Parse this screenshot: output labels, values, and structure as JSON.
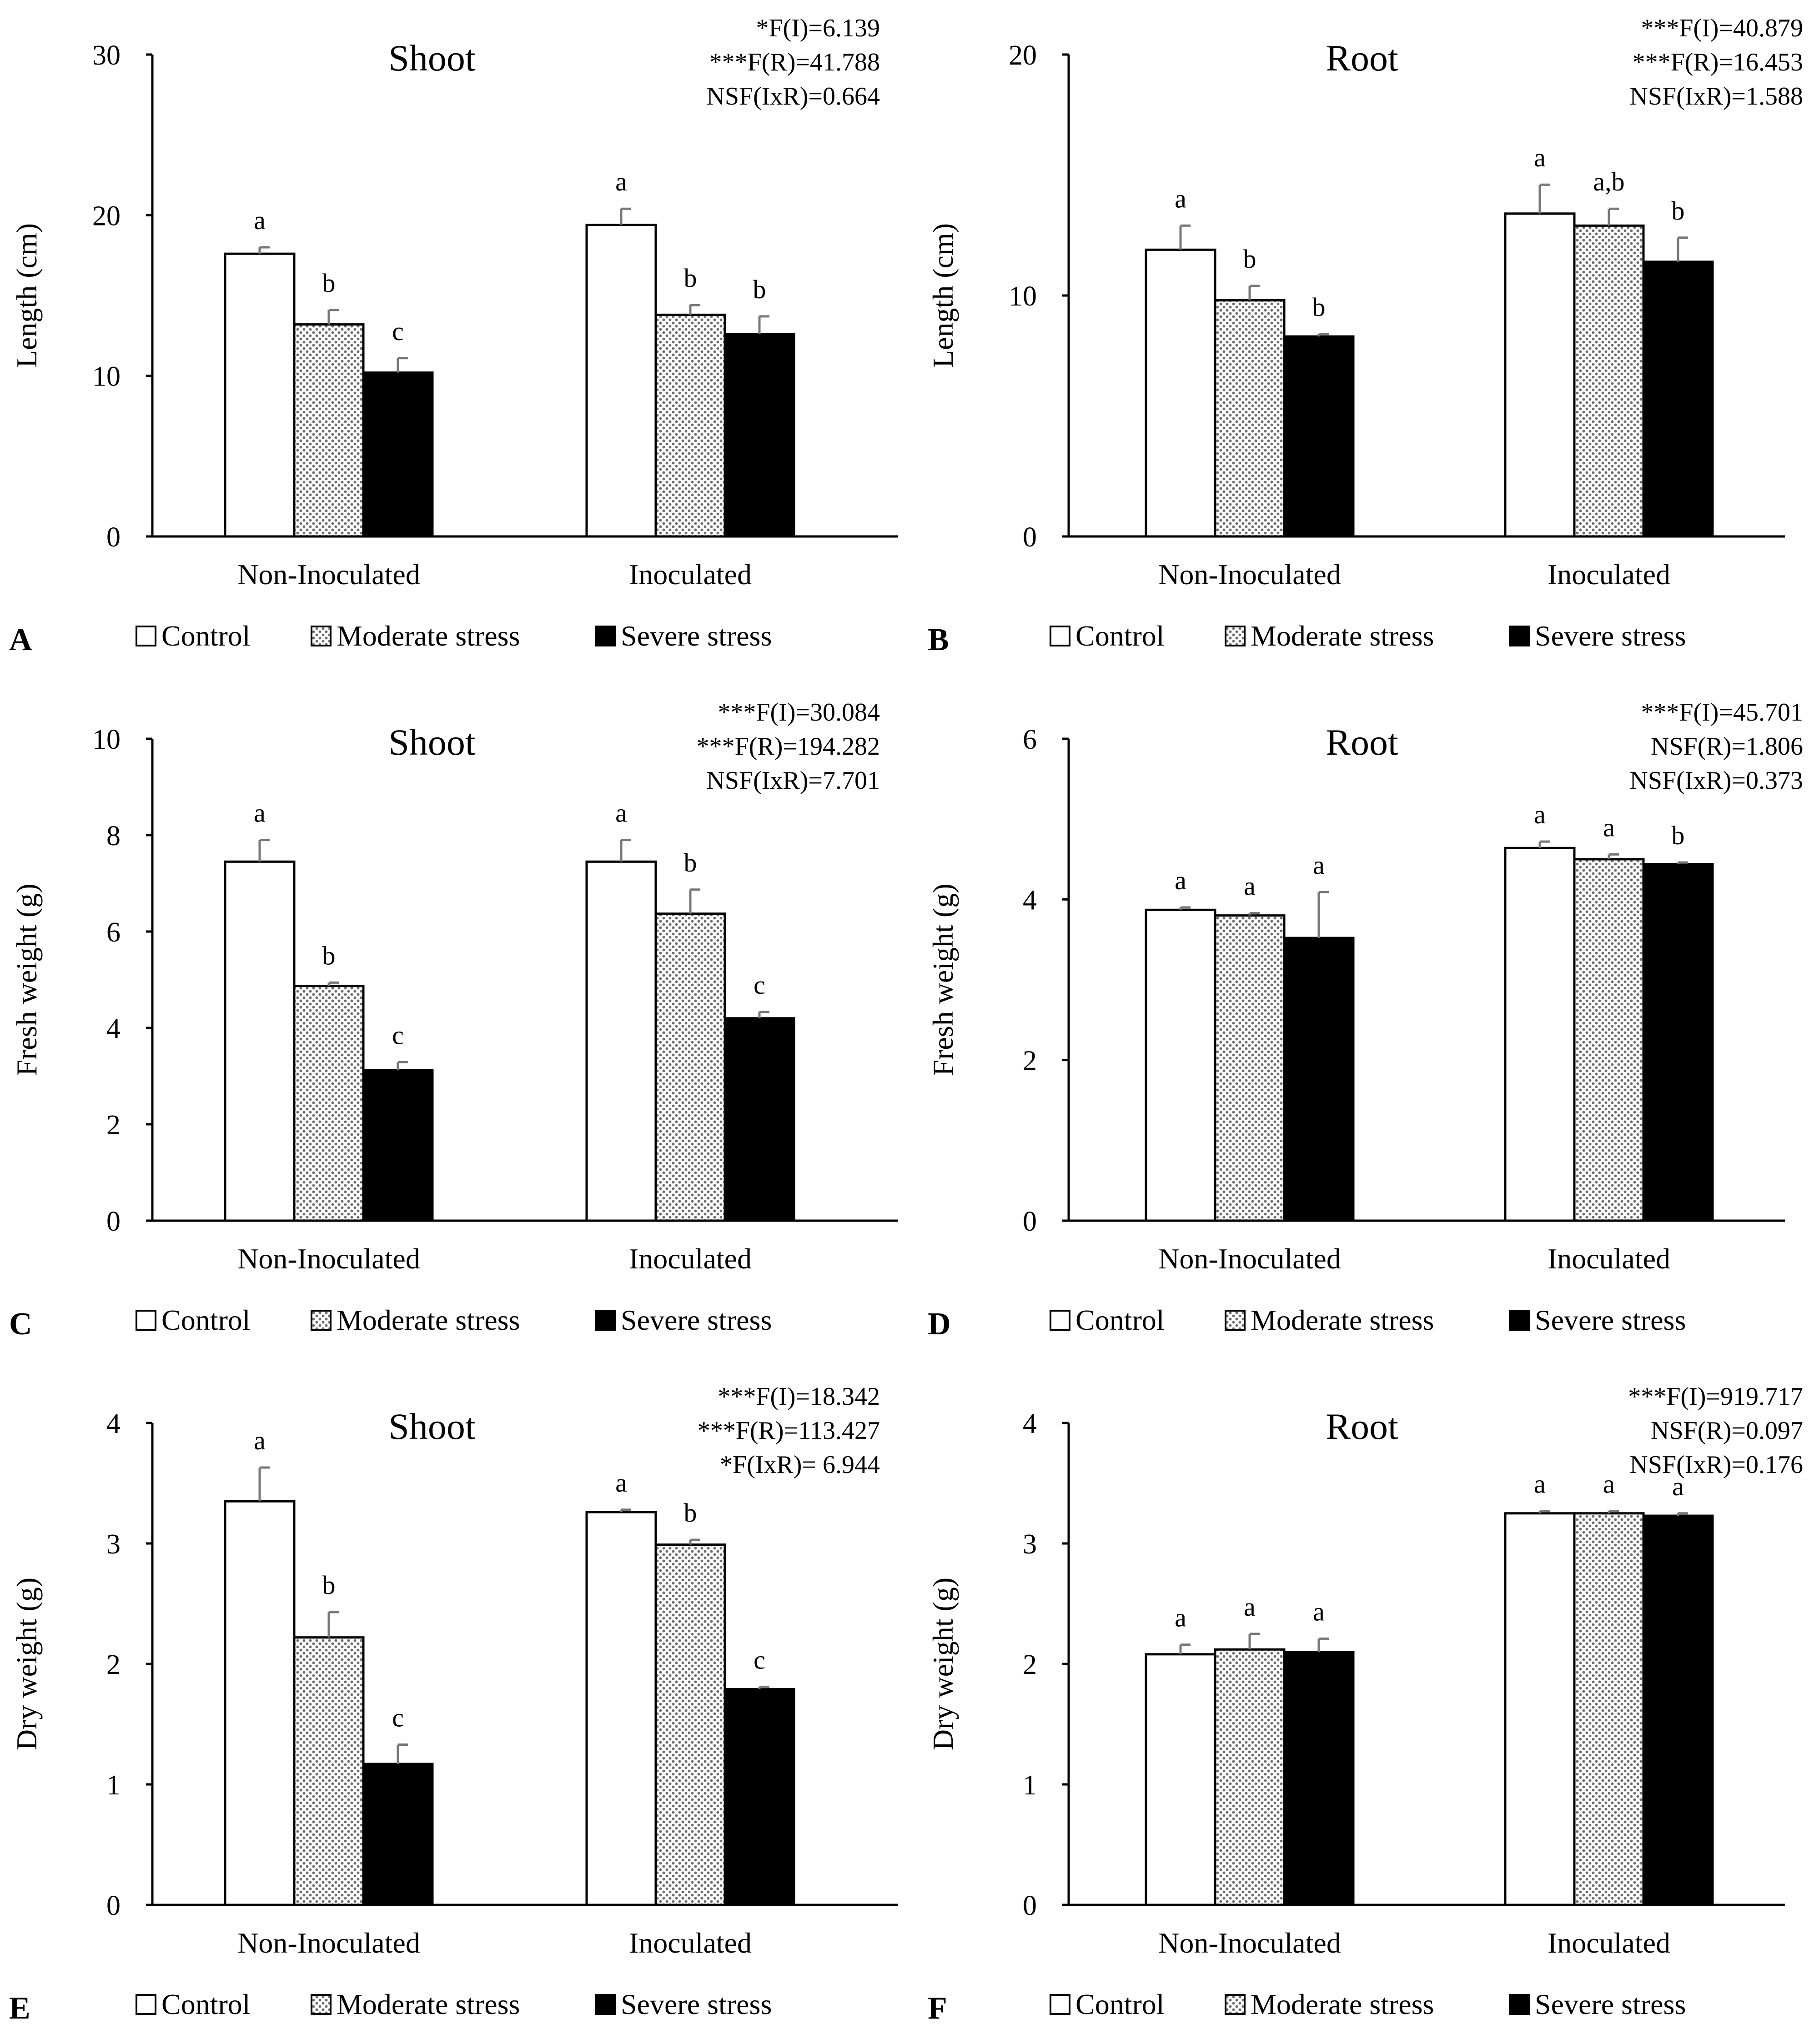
{
  "colors": {
    "control": "#ffffff",
    "moderate": "dotted-gray",
    "severe": "#000000",
    "axis": "#000000"
  },
  "legend": {
    "control": "Control",
    "moderate": "Moderate stress",
    "severe": "Severe stress"
  },
  "chart_data": [
    {
      "panel": "A",
      "type": "bar",
      "title": "Shoot",
      "ylabel": "Length (cm)",
      "ylim": [
        0,
        30
      ],
      "yticks": [
        "0",
        "10",
        "20",
        "30"
      ],
      "categories": [
        "Non-Inoculated",
        "Inoculated"
      ],
      "stats": [
        "*F(I)=6.139",
        "***F(R)=41.788",
        "NSF(IxR)=0.664"
      ],
      "series": [
        {
          "name": "Control",
          "values": [
            17.6,
            19.4
          ],
          "errors": [
            0.4,
            1.0
          ],
          "letters": [
            "a",
            "a"
          ]
        },
        {
          "name": "Moderate stress",
          "values": [
            13.2,
            13.8
          ],
          "errors": [
            0.9,
            0.6
          ],
          "letters": [
            "b",
            "b"
          ]
        },
        {
          "name": "Severe stress",
          "values": [
            10.2,
            12.6
          ],
          "errors": [
            0.9,
            1.1
          ],
          "letters": [
            "c",
            "b"
          ]
        }
      ]
    },
    {
      "panel": "B",
      "type": "bar",
      "title": "Root",
      "ylabel": "Length (cm)",
      "ylim": [
        0,
        20
      ],
      "yticks": [
        "0",
        "10",
        "20"
      ],
      "categories": [
        "Non-Inoculated",
        "Inoculated"
      ],
      "stats": [
        "***F(I)=40.879",
        "***F(R)=16.453",
        "NSF(IxR)=1.588"
      ],
      "series": [
        {
          "name": "Control",
          "values": [
            11.9,
            13.4
          ],
          "errors": [
            1.0,
            1.2
          ],
          "letters": [
            "a",
            "a"
          ]
        },
        {
          "name": "Moderate stress",
          "values": [
            9.8,
            12.9
          ],
          "errors": [
            0.6,
            0.7
          ],
          "letters": [
            "b",
            "a,b"
          ]
        },
        {
          "name": "Severe stress",
          "values": [
            8.3,
            11.4
          ],
          "errors": [
            0.1,
            1.0
          ],
          "letters": [
            "b",
            "b"
          ]
        }
      ]
    },
    {
      "panel": "C",
      "type": "bar",
      "title": "Shoot",
      "ylabel": "Fresh weight (g)",
      "ylim": [
        0,
        10
      ],
      "yticks": [
        "0",
        "2",
        "4",
        "6",
        "8",
        "10"
      ],
      "categories": [
        "Non-Inoculated",
        "Inoculated"
      ],
      "stats": [
        "***F(I)=30.084",
        "***F(R)=194.282",
        "NSF(IxR)=7.701"
      ],
      "series": [
        {
          "name": "Control",
          "values": [
            7.45,
            7.45
          ],
          "errors": [
            0.45,
            0.45
          ],
          "letters": [
            "a",
            "a"
          ]
        },
        {
          "name": "Moderate stress",
          "values": [
            4.87,
            6.37
          ],
          "errors": [
            0.07,
            0.5
          ],
          "letters": [
            "b",
            "b"
          ]
        },
        {
          "name": "Severe stress",
          "values": [
            3.12,
            4.2
          ],
          "errors": [
            0.17,
            0.13
          ],
          "letters": [
            "c",
            "c"
          ]
        }
      ]
    },
    {
      "panel": "D",
      "type": "bar",
      "title": "Root",
      "ylabel": "Fresh weight (g)",
      "ylim": [
        0,
        6
      ],
      "yticks": [
        "0",
        "2",
        "4",
        "6"
      ],
      "categories": [
        "Non-Inoculated",
        "Inoculated"
      ],
      "stats": [
        "***F(I)=45.701",
        "NSF(R)=1.806",
        "NSF(IxR)=0.373"
      ],
      "series": [
        {
          "name": "Control",
          "values": [
            3.87,
            4.64
          ],
          "errors": [
            0.03,
            0.08
          ],
          "letters": [
            "a",
            "a"
          ]
        },
        {
          "name": "Moderate stress",
          "values": [
            3.8,
            4.5
          ],
          "errors": [
            0.03,
            0.06
          ],
          "letters": [
            "a",
            "a"
          ]
        },
        {
          "name": "Severe stress",
          "values": [
            3.52,
            4.44
          ],
          "errors": [
            0.57,
            0.02
          ],
          "letters": [
            "a",
            "b"
          ]
        }
      ]
    },
    {
      "panel": "E",
      "type": "bar",
      "title": "Shoot",
      "ylabel": "Dry weight (g)",
      "ylim": [
        0,
        4
      ],
      "yticks": [
        "0",
        "1",
        "2",
        "3",
        "4"
      ],
      "categories": [
        "Non-Inoculated",
        "Inoculated"
      ],
      "stats": [
        "***F(I)=18.342",
        "***F(R)=113.427",
        "*F(IxR)= 6.944"
      ],
      "series": [
        {
          "name": "Control",
          "values": [
            3.35,
            3.26
          ],
          "errors": [
            0.28,
            0.02
          ],
          "letters": [
            "a",
            "a"
          ]
        },
        {
          "name": "Moderate stress",
          "values": [
            2.22,
            2.99
          ],
          "errors": [
            0.21,
            0.04
          ],
          "letters": [
            "b",
            "b"
          ]
        },
        {
          "name": "Severe stress",
          "values": [
            1.17,
            1.79
          ],
          "errors": [
            0.16,
            0.02
          ],
          "letters": [
            "c",
            "c"
          ]
        }
      ]
    },
    {
      "panel": "F",
      "type": "bar",
      "title": "Root",
      "ylabel": "Dry weight (g)",
      "ylim": [
        0,
        4
      ],
      "yticks": [
        "0",
        "1",
        "2",
        "3",
        "4"
      ],
      "categories": [
        "Non-Inoculated",
        "Inoculated"
      ],
      "stats": [
        "***F(I)=919.717",
        "NSF(R)=0.097",
        "NSF(IxR)=0.176"
      ],
      "series": [
        {
          "name": "Control",
          "values": [
            2.08,
            3.25
          ],
          "errors": [
            0.08,
            0.02
          ],
          "letters": [
            "a",
            "a"
          ]
        },
        {
          "name": "Moderate stress",
          "values": [
            2.12,
            3.25
          ],
          "errors": [
            0.13,
            0.02
          ],
          "letters": [
            "a",
            "a"
          ]
        },
        {
          "name": "Severe stress",
          "values": [
            2.1,
            3.23
          ],
          "errors": [
            0.11,
            0.02
          ],
          "letters": [
            "a",
            "a"
          ]
        }
      ]
    }
  ]
}
